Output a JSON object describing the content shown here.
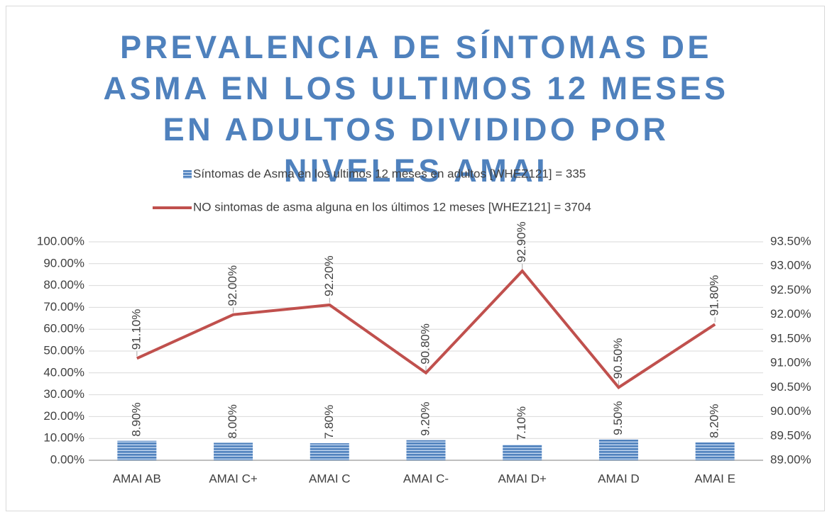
{
  "chart_data": {
    "type": "combo",
    "title": "PREVALENCIA DE SÍNTOMAS DE ASMA EN LOS ULTIMOS 12 MESES EN ADULTOS DIVIDIDO POR NIVELES AMAI",
    "categories": [
      "AMAI AB",
      "AMAI C+",
      "AMAI C",
      "AMAI C-",
      "AMAI D+",
      "AMAI D",
      "AMAI E"
    ],
    "series": [
      {
        "name": "Síntomas de Asma en los ultimos 12 meses en adultos [WHEZ121] = 335",
        "type": "bar",
        "color": "#4f81bd",
        "values": [
          8.9,
          8.0,
          7.8,
          9.2,
          7.1,
          9.5,
          8.2
        ],
        "value_labels": [
          "8.90%",
          "8.00%",
          "7.80%",
          "9.20%",
          "7.10%",
          "9.50%",
          "8.20%"
        ]
      },
      {
        "name": "NO sintomas de asma alguna en los últimos 12 meses [WHEZ121] = 3704",
        "type": "line",
        "axis": "y2",
        "color": "#c0504d",
        "values": [
          91.1,
          92.0,
          92.2,
          90.8,
          92.9,
          90.5,
          91.8
        ],
        "value_labels": [
          "91.10%",
          "92.00%",
          "92.20%",
          "90.80%",
          "92.90%",
          "90.50%",
          "91.80%"
        ]
      }
    ],
    "ylim": [
      0,
      100
    ],
    "yticks": [
      {
        "value": 0,
        "label": "0.00%"
      },
      {
        "value": 10,
        "label": "10.00%"
      },
      {
        "value": 20,
        "label": "20.00%"
      },
      {
        "value": 30,
        "label": "30.00%"
      },
      {
        "value": 40,
        "label": "40.00%"
      },
      {
        "value": 50,
        "label": "50.00%"
      },
      {
        "value": 60,
        "label": "60.00%"
      },
      {
        "value": 70,
        "label": "70.00%"
      },
      {
        "value": 80,
        "label": "80.00%"
      },
      {
        "value": 90,
        "label": "90.00%"
      },
      {
        "value": 100,
        "label": "100.00%"
      }
    ],
    "y2lim": [
      89,
      93.5
    ],
    "y2ticks": [
      {
        "value": 89,
        "label": "89.00%"
      },
      {
        "value": 89.5,
        "label": "89.50%"
      },
      {
        "value": 90,
        "label": "90.00%"
      },
      {
        "value": 90.5,
        "label": "90.50%"
      },
      {
        "value": 91,
        "label": "91.00%"
      },
      {
        "value": 91.5,
        "label": "91.50%"
      },
      {
        "value": 92,
        "label": "92.00%"
      },
      {
        "value": 92.5,
        "label": "92.50%"
      },
      {
        "value": 93,
        "label": "93.00%"
      },
      {
        "value": 93.5,
        "label": "93.50%"
      }
    ],
    "grid": true,
    "legend": "top"
  }
}
